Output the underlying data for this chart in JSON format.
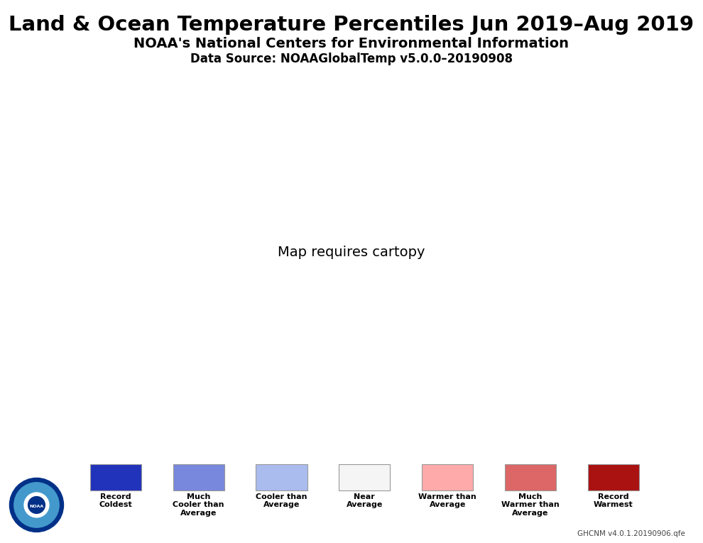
{
  "title": "Land & Ocean Temperature Percentiles Jun 2019–Aug 2019",
  "subtitle": "NOAA's National Centers for Environmental Information",
  "datasource": "Data Source: NOAAGlobalTemp v5.0.0–20190908",
  "credit": "GHCNM v4.0.1.20190906.qfe",
  "background_color": "#ffffff",
  "map_bg_color": "#b4b4b4",
  "ocean_color": "#b4b4b4",
  "legend_labels": [
    "Record\nColdest",
    "Much\nCooler than\nAverage",
    "Cooler than\nAverage",
    "Near\nAverage",
    "Warmer than\nAverage",
    "Much\nWarmer than\nAverage",
    "Record\nWarmest"
  ],
  "legend_colors": [
    "#2233bb",
    "#7788dd",
    "#aabbee",
    "#f5f5f5",
    "#ffaaaa",
    "#dd6666",
    "#aa1111"
  ],
  "title_fontsize": 21,
  "subtitle_fontsize": 14,
  "source_fontsize": 12,
  "nodata_color": "#b4b4b4"
}
